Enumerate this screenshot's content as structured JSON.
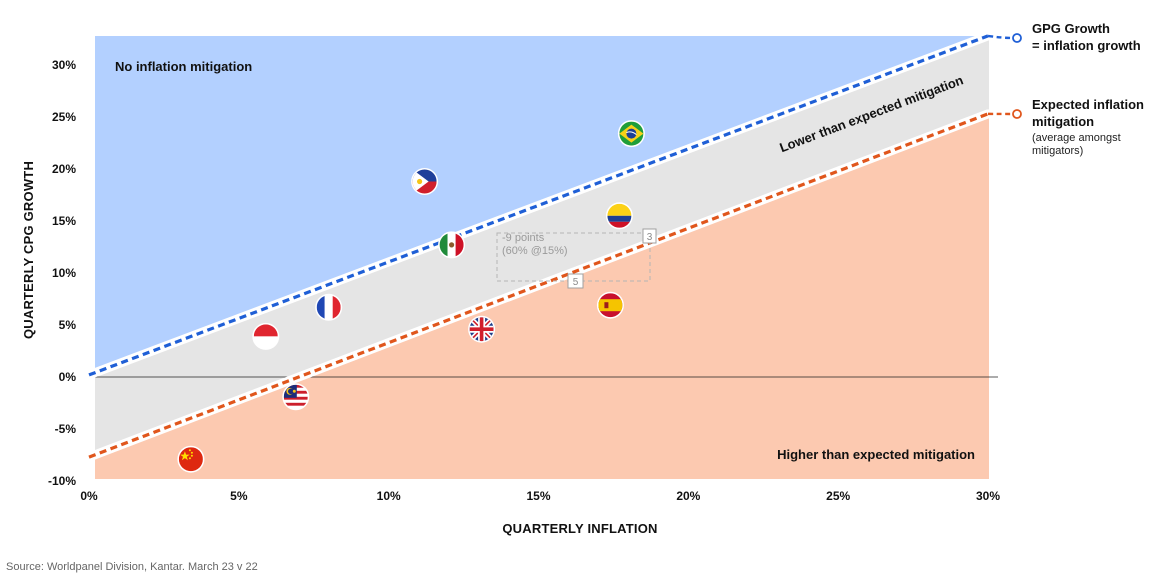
{
  "chart_data": {
    "type": "scatter",
    "title": "",
    "xlabel": "QUARTERLY INFLATION",
    "ylabel": "QUARTERLY CPG GROWTH",
    "xlim": [
      0,
      30
    ],
    "ylim": [
      -10,
      33
    ],
    "x_ticks": [
      "0%",
      "5%",
      "10%",
      "15%",
      "20%",
      "25%",
      "30%"
    ],
    "x_tick_values": [
      0,
      5,
      10,
      15,
      20,
      25,
      30
    ],
    "y_ticks": [
      "30%",
      "25%",
      "20%",
      "15%",
      "10%",
      "5%",
      "0%",
      "-5%",
      "-10%"
    ],
    "y_tick_values": [
      30,
      25,
      20,
      15,
      10,
      5,
      0,
      -5,
      -10
    ],
    "points": [
      {
        "flag": "brazil-flag",
        "x": 18.1,
        "y": 23.4
      },
      {
        "flag": "philippines-flag",
        "x": 11.2,
        "y": 18.8
      },
      {
        "flag": "colombia-flag",
        "x": 17.7,
        "y": 15.5
      },
      {
        "flag": "mexico-flag",
        "x": 12.1,
        "y": 12.7
      },
      {
        "flag": "france-flag",
        "x": 8.0,
        "y": 6.7
      },
      {
        "flag": "spain-flag",
        "x": 17.4,
        "y": 6.9
      },
      {
        "flag": "indonesia-flag",
        "x": 5.9,
        "y": 3.9
      },
      {
        "flag": "uk-flag",
        "x": 13.1,
        "y": 4.6
      },
      {
        "flag": "malaysia-flag",
        "x": 6.9,
        "y": -1.9
      },
      {
        "flag": "china-flag",
        "x": 3.4,
        "y": -7.9
      }
    ],
    "lines": [
      {
        "name": "GPG Growth = inflation growth",
        "x": [
          0,
          30
        ],
        "y": [
          0.2,
          32.8
        ],
        "color": "#1f5fd6"
      },
      {
        "name": "Expected inflation mitigation",
        "x": [
          0,
          30
        ],
        "y": [
          -7.7,
          25.3
        ],
        "color": "#e0561c"
      }
    ],
    "regions": [
      {
        "label": "No inflation mitigation",
        "color": "#b3d0ff"
      },
      {
        "label": "Lower than expected mitigation",
        "color": "#e5e5e5"
      },
      {
        "label": "Higher than expected mitigation",
        "color": "#fcc9b0"
      }
    ],
    "annotation": {
      "text_lines": [
        "-9 points",
        "(60% @15%)"
      ],
      "box_labels": [
        "3",
        "5"
      ]
    },
    "legend": {
      "line1_title_lines": [
        "GPG Growth",
        "= inflation growth"
      ],
      "line2_title_lines": [
        "Expected inflation",
        "mitigation"
      ],
      "line2_note_lines": [
        "(average amongst",
        "mitigators)"
      ]
    },
    "grid": false,
    "legend_placement": "right"
  },
  "source": "Source: Worldpanel Division, Kantar. March 23 v 22"
}
